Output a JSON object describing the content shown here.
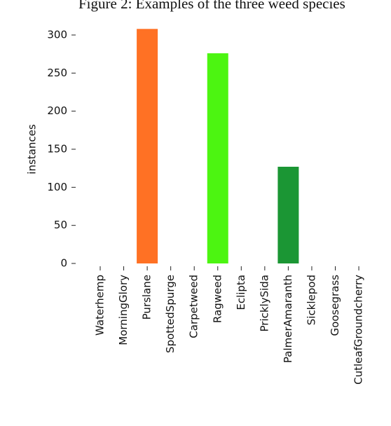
{
  "caption": "Figure 2: Examples of the three weed species",
  "chart_data": {
    "type": "bar",
    "ylabel": "instances",
    "categories": [
      "Waterhemp",
      "MorningGlory",
      "Purslane",
      "SpottedSpurge",
      "Carpetweed",
      "Ragweed",
      "Eclipta",
      "PricklySida",
      "PalmerAmaranth",
      "Sicklepod",
      "Goosegrass",
      "CutleafGroundcherry"
    ],
    "values": [
      0,
      0,
      308,
      0,
      0,
      276,
      0,
      0,
      127,
      0,
      0,
      0
    ],
    "colors": [
      null,
      null,
      "#ff7124",
      null,
      null,
      "#4cf511",
      null,
      null,
      "#1b9634",
      null,
      null,
      null
    ],
    "ylim": [
      0,
      310
    ],
    "yticks": [
      0,
      50,
      100,
      150,
      200,
      250,
      300
    ],
    "grid": false
  }
}
